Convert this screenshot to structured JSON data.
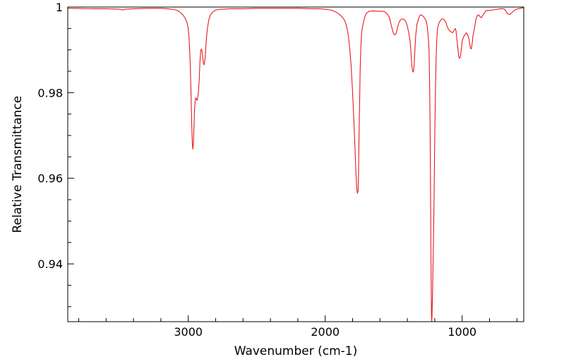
{
  "chart_data": {
    "type": "line",
    "title": "",
    "xlabel": "Wavenumber (cm-1)",
    "ylabel": "Relative Transmittance",
    "xlim": [
      3880,
      550
    ],
    "ylim": [
      0.9265,
      1.0
    ],
    "x_reversed": true,
    "grid": false,
    "legend": "none",
    "x_ticks": [
      {
        "value": 3000,
        "label": "3000"
      },
      {
        "value": 2000,
        "label": "2000"
      },
      {
        "value": 1000,
        "label": "1000"
      }
    ],
    "y_ticks": [
      {
        "value": 1.0,
        "label": "1"
      },
      {
        "value": 0.98,
        "label": "0.98"
      },
      {
        "value": 0.96,
        "label": "0.96"
      },
      {
        "value": 0.94,
        "label": "0.94"
      }
    ],
    "x_minor_step": 200,
    "y_minor_step": 0.005,
    "line_color": "#e8191c",
    "series": [
      {
        "x": [
          3880,
          3700,
          3600,
          3500,
          3480,
          3460,
          3400,
          3300,
          3200,
          3150,
          3100,
          3080,
          3060,
          3040,
          3025,
          3010,
          3000,
          2995,
          2990,
          2985,
          2980,
          2975,
          2970,
          2966,
          2962,
          2958,
          2955,
          2950,
          2945,
          2940,
          2935,
          2930,
          2925,
          2920,
          2915,
          2910,
          2905,
          2900,
          2895,
          2890,
          2885,
          2880,
          2875,
          2870,
          2865,
          2860,
          2850,
          2840,
          2830,
          2820,
          2810,
          2800,
          2780,
          2760,
          2740,
          2700,
          2600,
          2500,
          2400,
          2300,
          2200,
          2100,
          2050,
          2000,
          1980,
          1960,
          1940,
          1920,
          1900,
          1880,
          1860,
          1850,
          1840,
          1830,
          1820,
          1810,
          1800,
          1790,
          1780,
          1775,
          1770,
          1765,
          1760,
          1757,
          1755,
          1752,
          1748,
          1745,
          1740,
          1735,
          1730,
          1720,
          1710,
          1700,
          1680,
          1650,
          1600,
          1570,
          1550,
          1530,
          1520,
          1510,
          1500,
          1490,
          1480,
          1470,
          1460,
          1450,
          1440,
          1430,
          1420,
          1410,
          1400,
          1390,
          1380,
          1375,
          1370,
          1366,
          1362,
          1358,
          1354,
          1350,
          1345,
          1340,
          1330,
          1320,
          1310,
          1300,
          1290,
          1280,
          1270,
          1260,
          1255,
          1250,
          1245,
          1242,
          1240,
          1238,
          1236,
          1234,
          1232,
          1230,
          1228,
          1226,
          1224,
          1222,
          1220,
          1215,
          1210,
          1205,
          1200,
          1195,
          1190,
          1185,
          1180,
          1170,
          1160,
          1150,
          1140,
          1130,
          1120,
          1110,
          1100,
          1090,
          1080,
          1070,
          1060,
          1050,
          1045,
          1040,
          1035,
          1030,
          1025,
          1020,
          1015,
          1010,
          1005,
          1000,
          990,
          980,
          970,
          960,
          950,
          945,
          940,
          935,
          930,
          925,
          920,
          910,
          900,
          890,
          880,
          870,
          860,
          850,
          840,
          830,
          820,
          800,
          780,
          760,
          740,
          720,
          700,
          690,
          680,
          670,
          660,
          650,
          640,
          620,
          600,
          580,
          560,
          550
        ],
        "y": [
          0.9997,
          0.9996,
          0.9996,
          0.9995,
          0.9993,
          0.9995,
          0.9996,
          0.9997,
          0.9997,
          0.9996,
          0.9994,
          0.9992,
          0.9988,
          0.9982,
          0.9975,
          0.9965,
          0.995,
          0.993,
          0.99,
          0.986,
          0.98,
          0.973,
          0.968,
          0.9668,
          0.9685,
          0.972,
          0.9755,
          0.978,
          0.9788,
          0.9785,
          0.9782,
          0.979,
          0.9805,
          0.983,
          0.987,
          0.9895,
          0.9902,
          0.9898,
          0.9885,
          0.987,
          0.9865,
          0.9872,
          0.989,
          0.9915,
          0.9935,
          0.995,
          0.997,
          0.998,
          0.9985,
          0.9989,
          0.9991,
          0.9993,
          0.9994,
          0.9995,
          0.9995,
          0.9996,
          0.9996,
          0.9997,
          0.9997,
          0.9997,
          0.9997,
          0.9996,
          0.9996,
          0.9995,
          0.9994,
          0.9993,
          0.9991,
          0.9988,
          0.9984,
          0.9978,
          0.997,
          0.9962,
          0.995,
          0.993,
          0.99,
          0.986,
          0.98,
          0.973,
          0.965,
          0.961,
          0.9575,
          0.9565,
          0.957,
          0.9605,
          0.965,
          0.972,
          0.979,
          0.985,
          0.9905,
          0.9935,
          0.995,
          0.9965,
          0.9978,
          0.9985,
          0.999,
          0.9991,
          0.999,
          0.999,
          0.9985,
          0.9975,
          0.996,
          0.9948,
          0.9937,
          0.9935,
          0.994,
          0.9955,
          0.9965,
          0.997,
          0.9972,
          0.9972,
          0.997,
          0.9965,
          0.9955,
          0.994,
          0.992,
          0.99,
          0.9875,
          0.986,
          0.9852,
          0.9848,
          0.9852,
          0.987,
          0.99,
          0.993,
          0.996,
          0.997,
          0.998,
          0.9982,
          0.998,
          0.9977,
          0.9972,
          0.9965,
          0.9955,
          0.994,
          0.992,
          0.99,
          0.987,
          0.983,
          0.978,
          0.972,
          0.963,
          0.954,
          0.944,
          0.935,
          0.928,
          0.9265,
          0.928,
          0.935,
          0.945,
          0.955,
          0.97,
          0.98,
          0.988,
          0.9925,
          0.995,
          0.9962,
          0.9968,
          0.9972,
          0.9972,
          0.997,
          0.9965,
          0.9955,
          0.9948,
          0.9944,
          0.9942,
          0.994,
          0.9945,
          0.995,
          0.9945,
          0.993,
          0.9915,
          0.99,
          0.9885,
          0.988,
          0.9882,
          0.989,
          0.9905,
          0.992,
          0.993,
          0.9935,
          0.994,
          0.9935,
          0.9925,
          0.9915,
          0.9905,
          0.9902,
          0.9908,
          0.992,
          0.9935,
          0.995,
          0.997,
          0.998,
          0.9982,
          0.9978,
          0.9975,
          0.998,
          0.9985,
          0.999,
          0.9992,
          0.9992,
          0.9993,
          0.9994,
          0.9995,
          0.9996,
          0.9996,
          0.9995,
          0.999,
          0.9985,
          0.9983,
          0.9983,
          0.9986,
          0.9992,
          0.9995,
          0.9997,
          0.9998,
          0.9998
        ]
      }
    ]
  }
}
